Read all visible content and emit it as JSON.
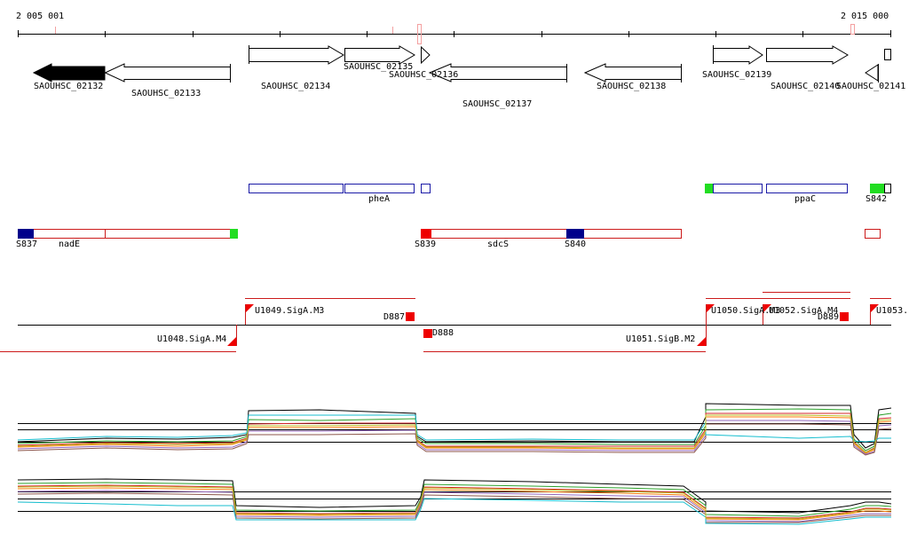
{
  "coordinates": {
    "start": "2 005 001",
    "end": "2 015 000"
  },
  "genes": [
    "SAOUHSC_02132",
    "SAOUHSC_02133",
    "SAOUHSC_02134",
    "SAOUHSC_02135",
    "SAOUHSC_02136",
    "SAOUHSC_02137",
    "SAOUHSC_02138",
    "SAOUHSC_02139",
    "SAOUHSC_02140",
    "SAOUHSC_02141"
  ],
  "operons_plus": [
    "pheA",
    "ppaC",
    "S842"
  ],
  "operons_minus": [
    "S837",
    "nadE",
    "S839",
    "sdcS",
    "S840"
  ],
  "transcription_units": [
    "U1049.SigA.M3",
    "D887",
    "D888",
    "U1048.SigA.M4",
    "U1051.SigB.M2",
    "U1050.SigA.M3",
    "U1052.SigA.M4",
    "D889",
    "U1053."
  ],
  "colors": {
    "gene_selected": "#000000",
    "operon_plus": "#1a1aa6",
    "operon_minus": "#cc1a1a",
    "green_box": "#22dd22",
    "navy_box": "#00008b",
    "red_box": "#ee0000"
  }
}
